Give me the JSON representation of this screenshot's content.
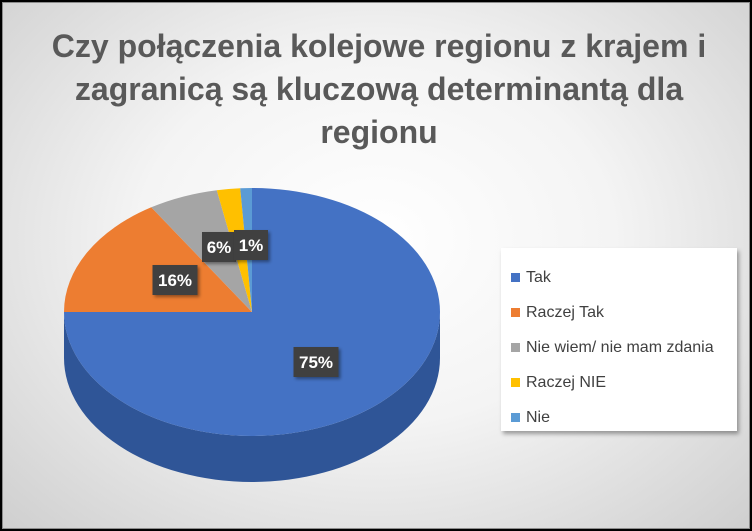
{
  "chart_data": {
    "type": "pie",
    "title": "Czy połączenia kolejowe regionu z krajem i zagranicą są kluczową determinantą dla regionu",
    "categories": [
      "Tak",
      "Raczej Tak",
      "Nie wiem/ nie mam zdania",
      "Raczej NIE",
      "Nie"
    ],
    "values": [
      75,
      16,
      6,
      2,
      1
    ],
    "data_labels": [
      "75%",
      "16%",
      "6%",
      "",
      "1%"
    ],
    "colors": [
      "#4472C4",
      "#ED7D31",
      "#A5A5A5",
      "#FFC000",
      "#5B9BD5"
    ],
    "side_colors": [
      "#2F5597",
      "#AE5A21",
      "#7B7B7B",
      "#BF9000",
      "#41719C"
    ],
    "legend_position": "right",
    "style": "3d-pie"
  }
}
